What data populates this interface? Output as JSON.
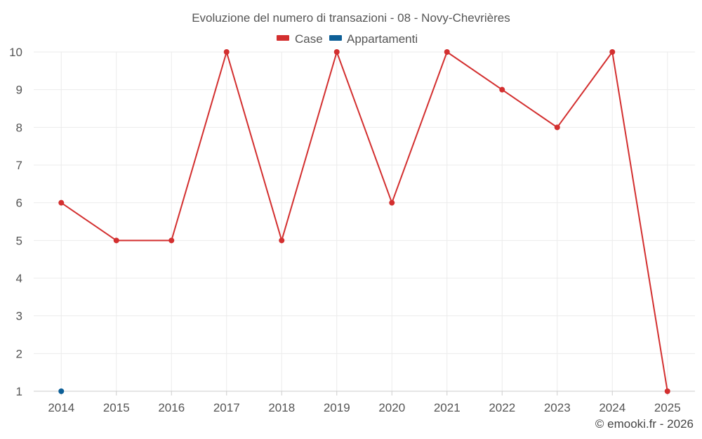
{
  "chart_data": {
    "type": "line",
    "title": "Evoluzione del numero di transazioni - 08 - Novy-Chevrières",
    "categories": [
      "2014",
      "2015",
      "2016",
      "2017",
      "2018",
      "2019",
      "2020",
      "2021",
      "2022",
      "2023",
      "2024",
      "2025"
    ],
    "series": [
      {
        "name": "Case",
        "color": "#d32f2f",
        "values": [
          6,
          5,
          5,
          10,
          5,
          10,
          6,
          10,
          9,
          8,
          10,
          1
        ]
      },
      {
        "name": "Appartamenti",
        "color": "#0d5f97",
        "values": [
          1,
          null,
          null,
          null,
          null,
          null,
          null,
          null,
          null,
          null,
          null,
          null
        ]
      }
    ],
    "ylim": [
      1,
      10
    ],
    "yticks": [
      1,
      2,
      3,
      4,
      5,
      6,
      7,
      8,
      9,
      10
    ],
    "xlabel": "",
    "ylabel": "",
    "grid": true,
    "legend": "top-center"
  },
  "credit": "© emooki.fr - 2026"
}
